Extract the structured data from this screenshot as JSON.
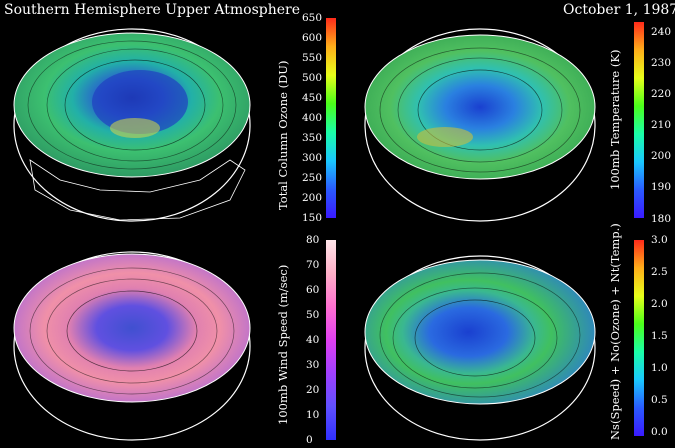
{
  "header": {
    "title": "Southern Hemisphere Upper Atmosphere",
    "date": "October 1, 1987"
  },
  "panels": [
    {
      "id": "ozone",
      "colorbar": {
        "label": "Total Column Ozone (DU)",
        "ticks": [
          "650",
          "600",
          "550",
          "500",
          "450",
          "400",
          "350",
          "300",
          "250",
          "200",
          "150"
        ]
      },
      "gradient": [
        "#ff2a1a",
        "#ffae1a",
        "#e8ff1a",
        "#4bff1a",
        "#1affa8",
        "#1ac8ff",
        "#2a5aff",
        "#3a1aff"
      ]
    },
    {
      "id": "temperature",
      "colorbar": {
        "label": "100mb Temperature (K)",
        "ticks": [
          "240",
          "230",
          "220",
          "210",
          "200",
          "190",
          "180"
        ]
      },
      "gradient": [
        "#ff2a1a",
        "#ffae1a",
        "#e8ff1a",
        "#4bff1a",
        "#1affa8",
        "#1ac8ff",
        "#2a5aff",
        "#3a1aff"
      ]
    },
    {
      "id": "wind",
      "colorbar": {
        "label": "100mb Wind Speed (m/sec)",
        "ticks": [
          "80",
          "70",
          "60",
          "50",
          "40",
          "30",
          "20",
          "10",
          "0"
        ]
      },
      "gradient": [
        "#ffe6ea",
        "#ffb0c8",
        "#ff70d0",
        "#e040f0",
        "#a040ff",
        "#6050ff",
        "#3030ff"
      ]
    },
    {
      "id": "combined",
      "colorbar": {
        "label": "Ns(Speed) + No(Ozone) + Nt(Temp.)",
        "ticks": [
          "3.0",
          "2.5",
          "2.0",
          "1.5",
          "1.0",
          "0.5",
          "0.0"
        ]
      },
      "gradient": [
        "#ff2a1a",
        "#ffae1a",
        "#e8ff1a",
        "#4bff1a",
        "#1affa8",
        "#1ac8ff",
        "#2a5aff",
        "#3a1aff"
      ]
    }
  ]
}
